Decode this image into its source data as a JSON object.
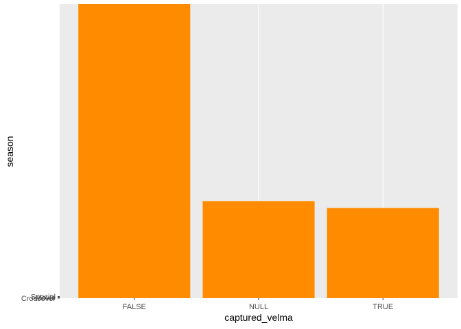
{
  "chart_data": {
    "type": "bar",
    "categories": [
      "FALSE",
      "NULL",
      "TRUE"
    ],
    "values": [
      427,
      141,
      131
    ],
    "xlabel": "captured_velma",
    "ylabel": "season",
    "y_tick_labels": [
      "Crossover",
      "Movie",
      "Special"
    ],
    "ylim": [
      0,
      427
    ],
    "bar_color": "#FF8C00",
    "panel_background": "#EBEBEB",
    "grid_color": "#FFFFFF",
    "grid": true,
    "legend": "none"
  }
}
